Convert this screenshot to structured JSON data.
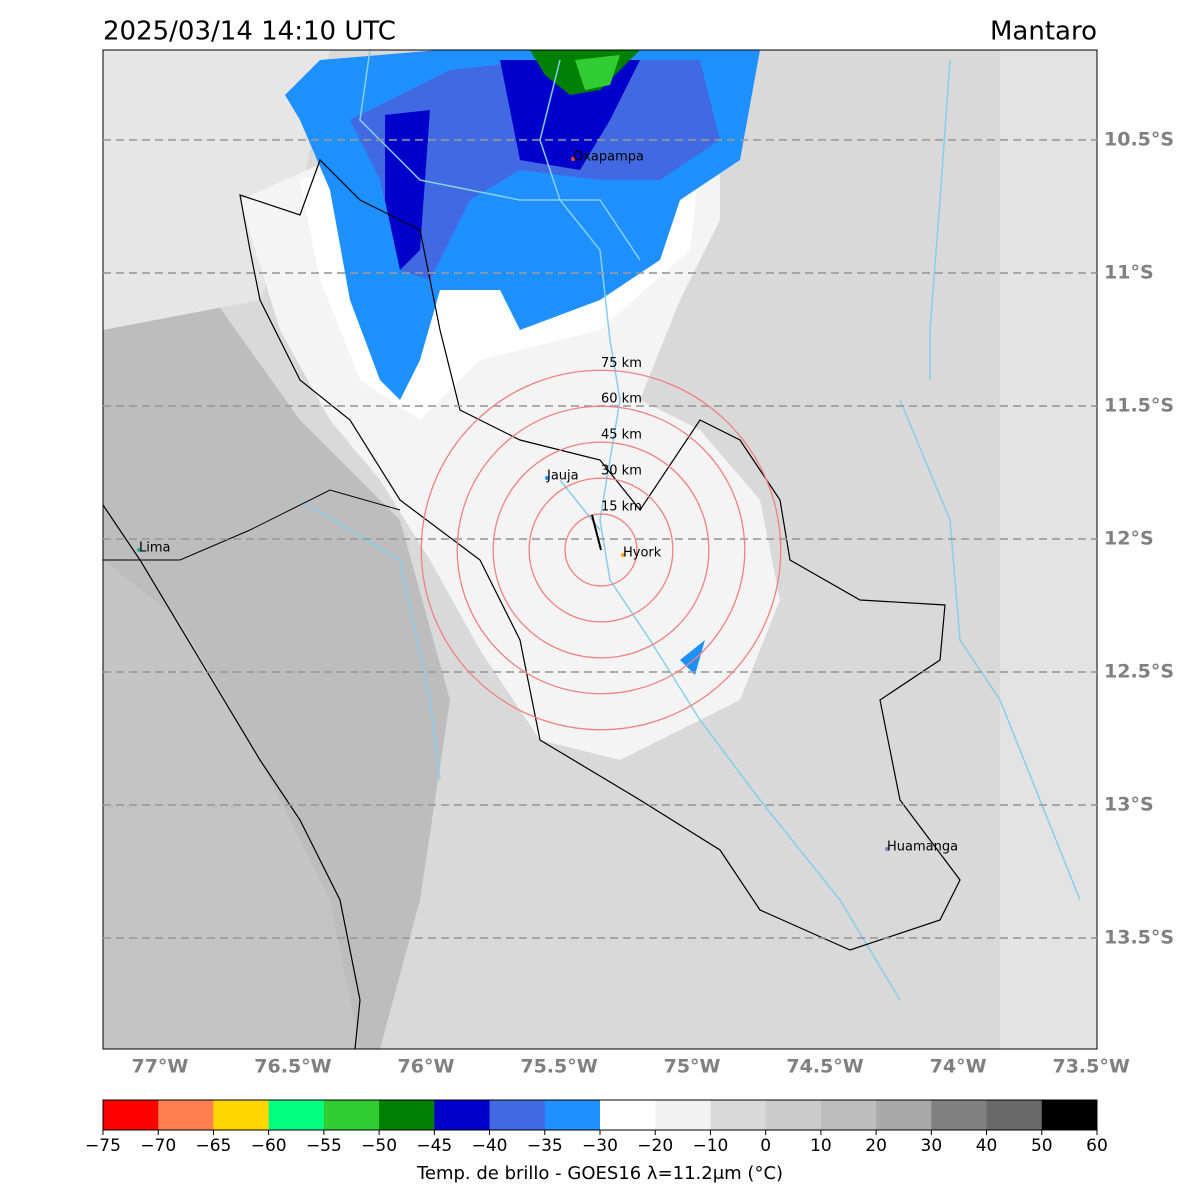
{
  "header": {
    "title": "2025/03/14 14:10 UTC",
    "region": "Mantaro"
  },
  "map": {
    "lonlim": [
      -77.214,
      -73.478
    ],
    "latlim": [
      -13.917,
      -10.162
    ],
    "lon_ticks": [
      {
        "value": -77,
        "label": "77°W"
      },
      {
        "value": -76.5,
        "label": "76.5°W"
      },
      {
        "value": -76,
        "label": "76°W"
      },
      {
        "value": -75.5,
        "label": "75.5°W"
      },
      {
        "value": -75,
        "label": "75°W"
      },
      {
        "value": -74.5,
        "label": "74.5°W"
      },
      {
        "value": -74,
        "label": "74°W"
      },
      {
        "value": -73.5,
        "label": "73.5°W"
      }
    ],
    "lat_ticks": [
      {
        "value": -10.5,
        "label": "10.5°S"
      },
      {
        "value": -11,
        "label": "11°S"
      },
      {
        "value": -11.5,
        "label": "11.5°S"
      },
      {
        "value": -12,
        "label": "12°S"
      },
      {
        "value": -12.5,
        "label": "12.5°S"
      },
      {
        "value": -13,
        "label": "13°S"
      },
      {
        "value": -13.5,
        "label": "13.5°S"
      }
    ],
    "rings": [
      {
        "value": 15,
        "label": "15 km"
      },
      {
        "value": 30,
        "label": "30 km"
      },
      {
        "value": 45,
        "label": "45 km"
      },
      {
        "value": 60,
        "label": "60 km"
      },
      {
        "value": 75,
        "label": "75 km"
      }
    ],
    "cities": [
      "Oxapampa",
      "Jauja",
      "Hyork",
      "Lima",
      "Huamanga"
    ]
  },
  "colorbar": {
    "label": "Temp. de brillo - GOES16 λ=11.2μm (°C)",
    "colors": [
      "#ff0000",
      "#ff7f50",
      "#ffd700",
      "#00ff7f",
      "#32cd32",
      "#008000",
      "#0000cd",
      "#4169e1",
      "#1e90ff",
      "#ffffff",
      "#f2f2f2",
      "#d9d9d9",
      "#cccccc",
      "#bdbdbd",
      "#a9a9a9",
      "#808080",
      "#696969",
      "#000000"
    ],
    "ticks": [
      {
        "value": -75,
        "label": "−75"
      },
      {
        "value": -70,
        "label": "−70"
      },
      {
        "value": -65,
        "label": "−65"
      },
      {
        "value": -60,
        "label": "−60"
      },
      {
        "value": -55,
        "label": "−55"
      },
      {
        "value": -50,
        "label": "−50"
      },
      {
        "value": -45,
        "label": "−45"
      },
      {
        "value": -40,
        "label": "−40"
      },
      {
        "value": -35,
        "label": "−35"
      },
      {
        "value": -30,
        "label": "−30"
      },
      {
        "value": -20,
        "label": "−20"
      },
      {
        "value": -10,
        "label": "−10"
      },
      0,
      10,
      20,
      30,
      40,
      50,
      60
    ]
  }
}
